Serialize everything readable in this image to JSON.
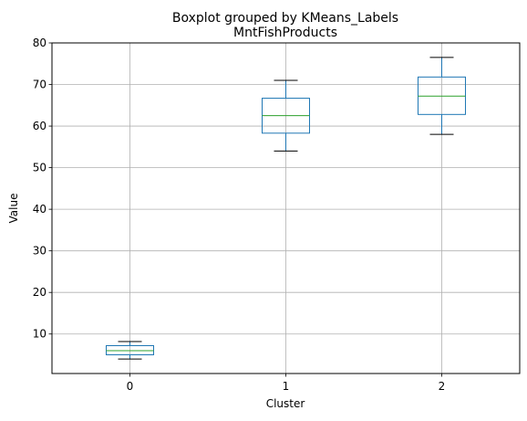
{
  "chart_data": {
    "type": "boxplot",
    "suptitle": "Boxplot grouped by KMeans_Labels",
    "title": "MntFishProducts",
    "xlabel": "Cluster",
    "ylabel": "Value",
    "categories": [
      "0",
      "1",
      "2"
    ],
    "ylim": [
      0.5,
      80
    ],
    "yticks": [
      10,
      20,
      30,
      40,
      50,
      60,
      70,
      80
    ],
    "grid": true,
    "boxes": [
      {
        "label": "0",
        "whisker_low": 4.0,
        "q1": 5.0,
        "median": 6.0,
        "q3": 7.2,
        "whisker_high": 8.2
      },
      {
        "label": "1",
        "whisker_low": 54.0,
        "q1": 58.3,
        "median": 62.5,
        "q3": 66.7,
        "whisker_high": 71.0
      },
      {
        "label": "2",
        "whisker_low": 58.0,
        "q1": 62.8,
        "median": 67.2,
        "q3": 71.8,
        "whisker_high": 76.5
      }
    ],
    "colors": {
      "box": "#1f77b4",
      "median": "#2ca02c",
      "caps": "#000000",
      "grid": "#b0b0b0"
    }
  }
}
